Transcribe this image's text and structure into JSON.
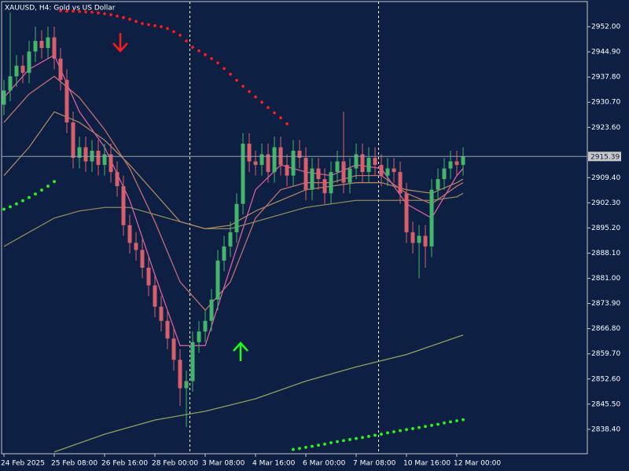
{
  "chart_data": {
    "type": "candlestick",
    "title": "XAUUSD, H4:  Gold vs US Dollar",
    "categories": [
      "24 Feb 2025",
      null,
      null,
      null,
      null,
      null,
      null,
      null,
      "25 Feb 08:00",
      null,
      null,
      null,
      null,
      null,
      null,
      null,
      "26 Feb 16:00",
      null,
      null,
      null,
      null,
      null,
      null,
      null,
      "28 Feb 00:00",
      null,
      null,
      null,
      null,
      null,
      null,
      null,
      "3 Mar 08:00",
      null,
      null,
      null,
      null,
      null,
      null,
      null,
      "4 Mar 16:00",
      null,
      null,
      null,
      null,
      null,
      null,
      null,
      "6 Mar 00:00",
      null,
      null,
      null,
      null,
      null,
      null,
      null,
      "7 Mar 08:00",
      null,
      null,
      null,
      null,
      null,
      null,
      null,
      "10 Mar 16:00",
      null,
      null,
      null,
      null,
      null,
      null,
      null,
      "12 Mar 00:00",
      null
    ],
    "open": [
      2930,
      2934,
      2938,
      2941,
      2939,
      2945,
      2948,
      2946,
      2949,
      2943,
      2937,
      2925,
      2915,
      2918,
      2914,
      2917,
      2913,
      2916,
      2911,
      2907,
      2896,
      2891,
      2889,
      2884,
      2879,
      2873,
      2869,
      2864,
      2858,
      2850,
      2852,
      2863,
      2866,
      2869,
      2875,
      2886,
      2890,
      2894,
      2902,
      2919,
      2914,
      2913,
      2916,
      2911,
      2918,
      2913,
      2910,
      2917,
      2915,
      2906,
      2912,
      2909,
      2905,
      2911,
      2914,
      2908,
      2912,
      2916,
      2911,
      2915,
      2913,
      2910,
      2912,
      2911,
      2905,
      2894,
      2891,
      2893,
      2890,
      2906,
      2909,
      2912,
      2914,
      2913
    ],
    "high": [
      2937,
      2956,
      2944,
      2944,
      2948,
      2952,
      2951,
      2952,
      2952,
      2946,
      2940,
      2928,
      2921,
      2921,
      2920,
      2920,
      2919,
      2919,
      2914,
      2910,
      2899,
      2894,
      2892,
      2887,
      2882,
      2876,
      2872,
      2867,
      2861,
      2855,
      2866,
      2869,
      2872,
      2878,
      2889,
      2893,
      2897,
      2905,
      2922,
      2922,
      2917,
      2919,
      2919,
      2921,
      2921,
      2916,
      2920,
      2920,
      2918,
      2915,
      2915,
      2912,
      2914,
      2917,
      2928,
      2915,
      2919,
      2919,
      2918,
      2918,
      2916,
      2915,
      2915,
      2914,
      2908,
      2897,
      2896,
      2896,
      2909,
      2912,
      2915,
      2917,
      2917,
      2918
    ],
    "low": [
      2927,
      2931,
      2935,
      2936,
      2936,
      2942,
      2943,
      2943,
      2940,
      2934,
      2922,
      2912,
      2912,
      2911,
      2911,
      2910,
      2910,
      2908,
      2904,
      2893,
      2888,
      2886,
      2881,
      2876,
      2870,
      2866,
      2861,
      2855,
      2845,
      2839,
      2849,
      2860,
      2863,
      2866,
      2872,
      2883,
      2887,
      2891,
      2899,
      2911,
      2910,
      2910,
      2908,
      2908,
      2910,
      2907,
      2907,
      2912,
      2903,
      2903,
      2906,
      2902,
      2902,
      2908,
      2905,
      2905,
      2909,
      2908,
      2908,
      2910,
      2907,
      2907,
      2908,
      2902,
      2891,
      2888,
      2881,
      2884,
      2887,
      2903,
      2906,
      2909,
      2910,
      2910
    ],
    "close": [
      2934,
      2938,
      2941,
      2939,
      2945,
      2948,
      2946,
      2949,
      2943,
      2937,
      2925,
      2915,
      2918,
      2914,
      2917,
      2913,
      2916,
      2911,
      2907,
      2896,
      2891,
      2889,
      2884,
      2879,
      2873,
      2869,
      2864,
      2858,
      2850,
      2852,
      2863,
      2866,
      2869,
      2875,
      2886,
      2890,
      2894,
      2902,
      2919,
      2914,
      2913,
      2916,
      2911,
      2918,
      2913,
      2910,
      2917,
      2915,
      2906,
      2912,
      2909,
      2905,
      2911,
      2914,
      2908,
      2912,
      2916,
      2911,
      2915,
      2913,
      2910,
      2912,
      2911,
      2905,
      2894,
      2891,
      2893,
      2890,
      2906,
      2909,
      2912,
      2914,
      2913,
      2915.4
    ],
    "up_color": "#44b56a",
    "down_color": "#d7606b",
    "ylim": [
      2831.5,
      2959.1
    ],
    "yticks": [
      {
        "value": 2952,
        "label": "2952.00"
      },
      {
        "value": 2944.9,
        "label": "2944.90"
      },
      {
        "value": 2937.8,
        "label": "2937.80"
      },
      {
        "value": 2930.7,
        "label": "2930.70"
      },
      {
        "value": 2923.6,
        "label": "2923.60"
      },
      {
        "value": 2909.4,
        "label": "2909.40"
      },
      {
        "value": 2902.3,
        "label": "2902.30"
      },
      {
        "value": 2895.2,
        "label": "2895.20"
      },
      {
        "value": 2888.1,
        "label": "2888.10"
      },
      {
        "value": 2881,
        "label": "2881.00"
      },
      {
        "value": 2873.9,
        "label": "2873.90"
      },
      {
        "value": 2866.8,
        "label": "2866.80"
      },
      {
        "value": 2859.7,
        "label": "2859.70"
      },
      {
        "value": 2852.6,
        "label": "2852.60"
      },
      {
        "value": 2845.5,
        "label": "2845.50"
      },
      {
        "value": 2838.4,
        "label": "2838.40"
      }
    ],
    "current_price": 2915.39,
    "overlays": [
      {
        "style": "line",
        "color": "#8fa15b",
        "x": [
          8,
          16,
          24,
          32,
          40,
          48,
          56,
          64,
          73
        ],
        "values": [
          2832,
          2837,
          2841,
          2843.5,
          2847,
          2852,
          2856,
          2859.5,
          2865
        ]
      },
      {
        "style": "line",
        "color": "#90885a",
        "x": [
          0,
          4,
          8,
          12,
          16,
          20,
          24,
          28,
          32,
          36,
          40,
          44,
          48,
          52,
          56,
          60,
          64,
          68,
          72,
          73
        ],
        "values": [
          2890,
          2894,
          2898,
          2900,
          2901,
          2901,
          2899,
          2897,
          2895,
          2895,
          2897,
          2899,
          2901,
          2902,
          2903,
          2903,
          2903,
          2903,
          2904,
          2905
        ]
      },
      {
        "style": "line",
        "color": "#a8875f",
        "x": [
          0,
          4,
          8,
          12,
          16,
          20,
          24,
          28,
          32,
          36,
          40,
          44,
          48,
          52,
          56,
          60,
          64,
          68,
          72,
          73
        ],
        "values": [
          2910,
          2918,
          2928,
          2925,
          2920,
          2913,
          2905,
          2897,
          2895,
          2896,
          2900,
          2903,
          2906,
          2907,
          2908,
          2908,
          2906,
          2905,
          2908,
          2909
        ]
      },
      {
        "style": "line",
        "color": "#c0706e",
        "x": [
          0,
          4,
          8,
          12,
          16,
          20,
          24,
          28,
          32,
          36,
          40,
          44,
          48,
          52,
          56,
          60,
          64,
          68,
          72,
          73
        ],
        "values": [
          2925,
          2933,
          2938,
          2932,
          2923,
          2912,
          2897,
          2880,
          2872,
          2880,
          2898,
          2906,
          2908,
          2908,
          2910,
          2910,
          2905,
          2902,
          2907,
          2908
        ]
      },
      {
        "style": "line",
        "color": "#d85f9c",
        "x": [
          0,
          4,
          8,
          12,
          16,
          20,
          24,
          28,
          32,
          36,
          40,
          44,
          48,
          52,
          56,
          60,
          64,
          68,
          72,
          73
        ],
        "values": [
          2932,
          2940,
          2944,
          2928,
          2918,
          2903,
          2882,
          2862,
          2862,
          2884,
          2906,
          2913,
          2911,
          2910,
          2913,
          2912,
          2902,
          2898,
          2910,
          2912
        ]
      },
      {
        "style": "dots",
        "color": "#ff1a1a",
        "x": [
          9,
          10,
          11,
          12,
          13,
          14,
          15,
          16,
          17,
          18,
          19,
          20,
          21,
          22,
          23,
          24,
          25,
          26,
          27,
          28,
          29,
          30,
          31,
          32,
          33,
          34,
          35,
          36,
          37,
          38,
          39,
          40,
          41,
          42,
          43,
          44,
          45
        ],
        "values": [
          2956.5,
          2956.4,
          2956.4,
          2956.3,
          2956.2,
          2956.1,
          2955.9,
          2955.7,
          2955.4,
          2955,
          2954.6,
          2954.1,
          2953.5,
          2952.9,
          2952.6,
          2952.3,
          2952,
          2951.5,
          2950.6,
          2949.6,
          2948,
          2946.2,
          2945.2,
          2944.1,
          2943,
          2941.8,
          2940.2,
          2938.6,
          2936.9,
          2935.2,
          2933.7,
          2932.2,
          2930.7,
          2929.2,
          2927.7,
          2926.3,
          2924.6
        ]
      },
      {
        "style": "dots",
        "color": "#1aff1a",
        "x": [
          0,
          1,
          2,
          3,
          4,
          5,
          6,
          7,
          8
        ],
        "values": [
          2900.5,
          2901.2,
          2902,
          2902.9,
          2903.8,
          2904.8,
          2905.9,
          2907,
          2908.3
        ]
      },
      {
        "style": "dots",
        "color": "#1aff1a",
        "x": [
          46,
          47,
          48,
          49,
          50,
          51,
          52,
          53,
          54,
          55,
          56,
          57,
          58,
          59,
          60,
          61,
          62,
          63,
          64,
          65,
          66,
          67,
          68,
          69,
          70,
          71,
          72,
          73
        ],
        "values": [
          2832.7,
          2833,
          2833.3,
          2833.6,
          2833.9,
          2834.2,
          2834.6,
          2834.9,
          2835.2,
          2835.5,
          2835.8,
          2836.1,
          2836.4,
          2836.7,
          2837,
          2837.4,
          2837.7,
          2838,
          2838.3,
          2838.6,
          2838.9,
          2839.2,
          2839.5,
          2839.8,
          2840.2,
          2840.5,
          2840.8,
          2841.1
        ]
      }
    ]
  }
}
